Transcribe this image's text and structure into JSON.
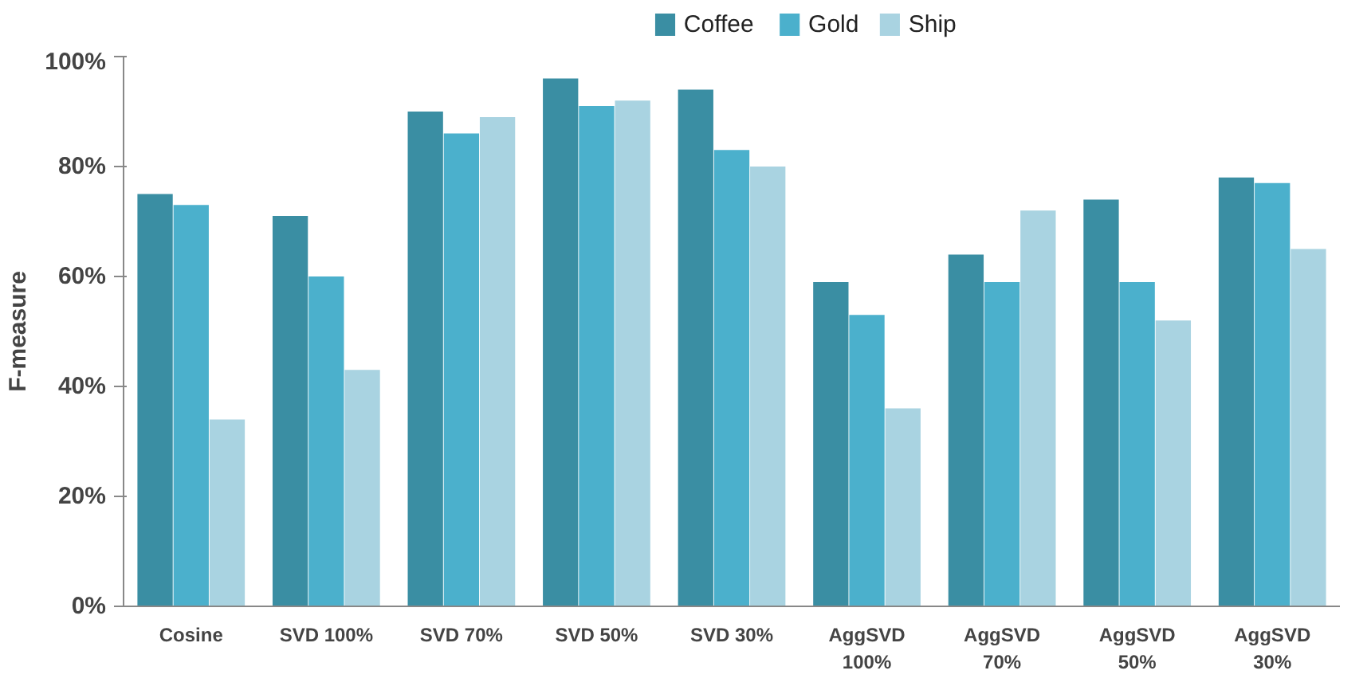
{
  "chart_data": {
    "type": "bar",
    "ylabel": "F-measure",
    "categories": [
      "Cosine",
      "SVD 100%",
      "SVD 70%",
      "SVD 50%",
      "SVD 30%",
      "AggSVD\n100%",
      "AggSVD\n70%",
      "AggSVD\n50%",
      "AggSVD\n30%"
    ],
    "series": [
      {
        "name": "Coffee",
        "color": "#3a8ea3",
        "values": [
          75,
          71,
          90,
          96,
          94,
          59,
          64,
          74,
          78
        ]
      },
      {
        "name": "Gold",
        "color": "#4bb0cc",
        "values": [
          73,
          60,
          86,
          91,
          83,
          53,
          59,
          59,
          77
        ]
      },
      {
        "name": "Ship",
        "color": "#a9d3e1",
        "values": [
          34,
          43,
          89,
          92,
          80,
          36,
          72,
          52,
          65
        ]
      }
    ],
    "ylim": [
      0,
      100
    ],
    "yticks": [
      {
        "value": 0,
        "label": "0%"
      },
      {
        "value": 20,
        "label": "20%"
      },
      {
        "value": 40,
        "label": "40%"
      },
      {
        "value": 60,
        "label": "60%"
      },
      {
        "value": 80,
        "label": "80%"
      },
      {
        "value": 100,
        "label": "100%"
      }
    ],
    "grid": false,
    "legend": "top"
  }
}
